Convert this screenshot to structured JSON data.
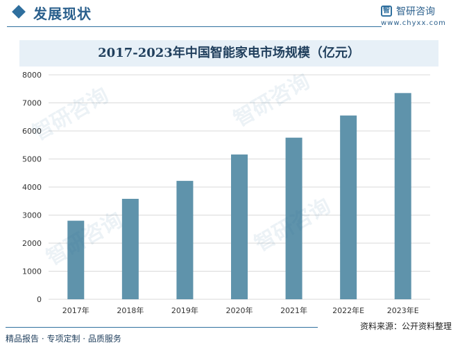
{
  "header": {
    "title": "发展现状",
    "logo_name": "智研咨询",
    "logo_url": "www.chyxx.com"
  },
  "footer": {
    "tagline": "精品报告 · 专项定制 · 品质服务",
    "source": "资料来源：公开资料整理"
  },
  "watermark_text": "智研咨询",
  "colors": {
    "bar": "#5f93ab",
    "accent": "#2f6f9e",
    "grid": "#d9d9d9"
  },
  "chart_data": {
    "type": "bar",
    "title": "2017-2023年中国智能家电市场规模（亿元）",
    "categories": [
      "2017年",
      "2018年",
      "2019年",
      "2020年",
      "2021年",
      "2022年E",
      "2023年E"
    ],
    "values": [
      2800,
      3580,
      4220,
      5160,
      5760,
      6550,
      7350
    ],
    "ylim": [
      0,
      8000
    ],
    "yticks": [
      0,
      1000,
      2000,
      3000,
      4000,
      5000,
      6000,
      7000,
      8000
    ],
    "grid": true,
    "legend": "none"
  }
}
